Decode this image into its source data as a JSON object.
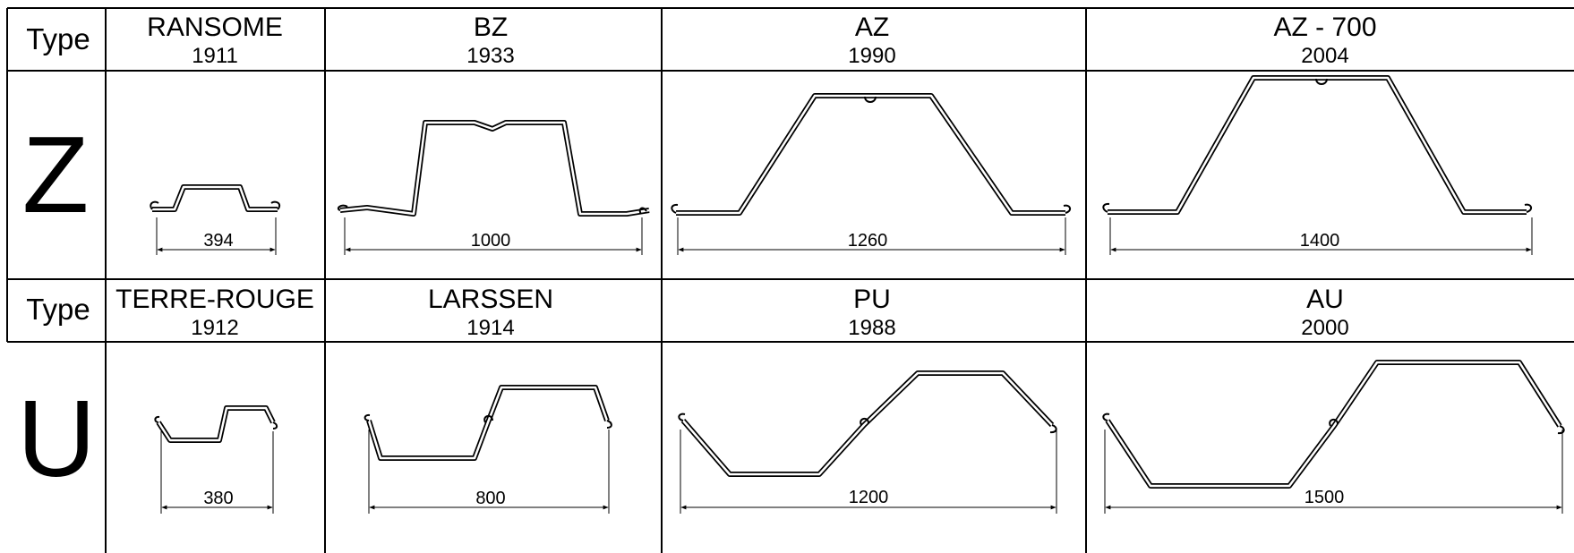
{
  "type_label": "Type",
  "rows": [
    {
      "letter": "Z",
      "items": [
        {
          "name": "RANSOME",
          "year": "1911",
          "width": "394"
        },
        {
          "name": "BZ",
          "year": "1933",
          "width": "1000"
        },
        {
          "name": "AZ",
          "year": "1990",
          "width": "1260"
        },
        {
          "name": "AZ - 700",
          "year": "2004",
          "width": "1400"
        }
      ]
    },
    {
      "letter": "U",
      "items": [
        {
          "name": "TERRE-ROUGE",
          "year": "1912",
          "width": "380"
        },
        {
          "name": "LARSSEN",
          "year": "1914",
          "width": "800"
        },
        {
          "name": "PU",
          "year": "1988",
          "width": "1200"
        },
        {
          "name": "AU",
          "year": "2000",
          "width": "1500"
        }
      ]
    }
  ]
}
